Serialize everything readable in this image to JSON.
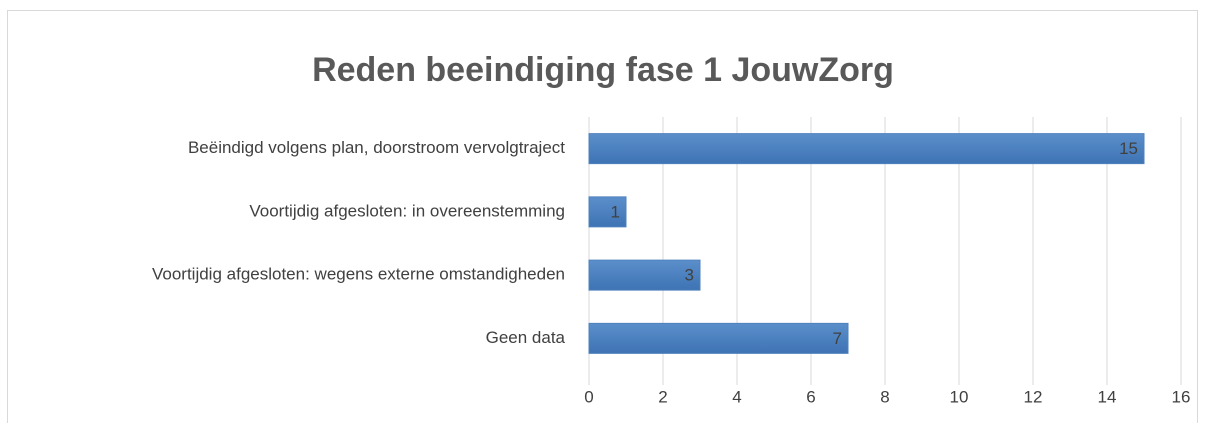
{
  "chart_data": {
    "type": "bar",
    "orientation": "horizontal",
    "title": "Reden beeindiging fase 1 JouwZorg",
    "categories": [
      "Beëindigd volgens plan, doorstroom vervolgtraject",
      "Voortijdig afgesloten: in overeenstemming",
      "Voortijdig afgesloten: wegens externe omstandigheden",
      "Geen data"
    ],
    "values": [
      15,
      1,
      3,
      7
    ],
    "color": "#4f81bd",
    "xlim": [
      0,
      16
    ],
    "xticks": [
      0,
      2,
      4,
      6,
      8,
      10,
      12,
      14,
      16
    ],
    "grid": true
  }
}
